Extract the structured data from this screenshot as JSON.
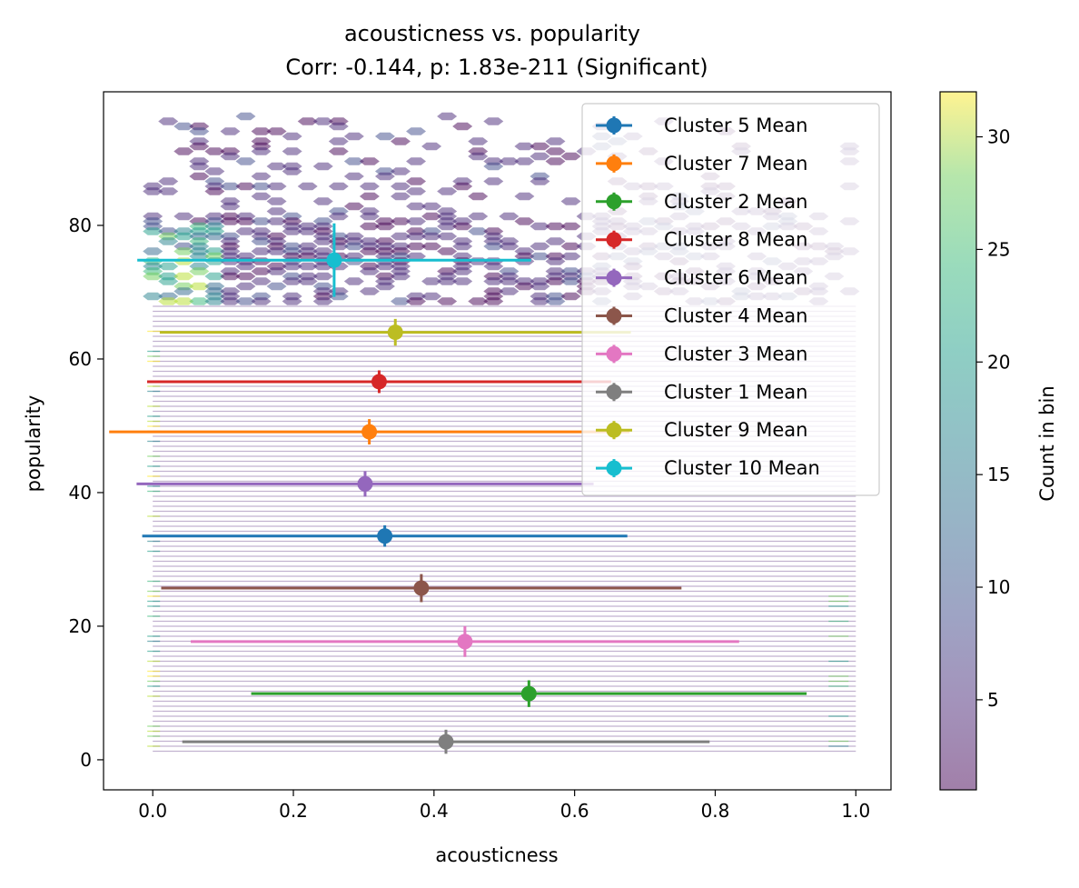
{
  "chart_data": {
    "type": "scatter",
    "title_line1": "acousticness vs. popularity",
    "title_line2": "Corr: -0.144, p: 1.83e-211 (Significant)",
    "xlabel": "acousticness",
    "ylabel": "popularity",
    "xlim": [
      -0.07,
      1.05
    ],
    "ylim": [
      -4.5,
      100
    ],
    "xticks": [
      0.0,
      0.2,
      0.4,
      0.6,
      0.8,
      1.0
    ],
    "xtick_labels": [
      "0.0",
      "0.2",
      "0.4",
      "0.6",
      "0.8",
      "1.0"
    ],
    "yticks": [
      0,
      20,
      40,
      60,
      80
    ],
    "ytick_labels": [
      "0",
      "20",
      "40",
      "60",
      "80"
    ],
    "legend_position": "upper right",
    "series": [
      {
        "name": "Cluster 5 Mean",
        "color": "#1f77b4",
        "x": 0.33,
        "y": 33.5,
        "xerr": 0.345,
        "yerr": 1.6
      },
      {
        "name": "Cluster 7 Mean",
        "color": "#ff7f0e",
        "x": 0.308,
        "y": 49.1,
        "xerr": 0.37,
        "yerr": 1.9
      },
      {
        "name": "Cluster 2 Mean",
        "color": "#2ca02c",
        "x": 0.535,
        "y": 9.9,
        "xerr": 0.395,
        "yerr": 2.0
      },
      {
        "name": "Cluster 8 Mean",
        "color": "#d62728",
        "x": 0.322,
        "y": 56.6,
        "xerr": 0.33,
        "yerr": 1.7
      },
      {
        "name": "Cluster 6 Mean",
        "color": "#9467bd",
        "x": 0.302,
        "y": 41.3,
        "xerr": 0.325,
        "yerr": 1.9
      },
      {
        "name": "Cluster 4 Mean",
        "color": "#8c564b",
        "x": 0.382,
        "y": 25.7,
        "xerr": 0.37,
        "yerr": 2.1
      },
      {
        "name": "Cluster 3 Mean",
        "color": "#e377c2",
        "x": 0.444,
        "y": 17.7,
        "xerr": 0.39,
        "yerr": 2.3
      },
      {
        "name": "Cluster 1 Mean",
        "color": "#7f7f7f",
        "x": 0.417,
        "y": 2.7,
        "xerr": 0.375,
        "yerr": 1.8
      },
      {
        "name": "Cluster 9 Mean",
        "color": "#bcbd22",
        "x": 0.345,
        "y": 64.0,
        "xerr": 0.335,
        "yerr": 2.0
      },
      {
        "name": "Cluster 10 Mean",
        "color": "#17becf",
        "x": 0.258,
        "y": 74.8,
        "xerr": 0.28,
        "yerr": 5.5
      }
    ],
    "colorbar": {
      "label": "Count in bin",
      "range": [
        1,
        32
      ],
      "ticks": [
        5,
        10,
        15,
        20,
        25,
        30
      ],
      "tick_labels": [
        "5",
        "10",
        "15",
        "20",
        "25",
        "30"
      ],
      "colormap": "viridis",
      "alpha": 0.5
    },
    "hexbin_alpha": 0.5
  }
}
